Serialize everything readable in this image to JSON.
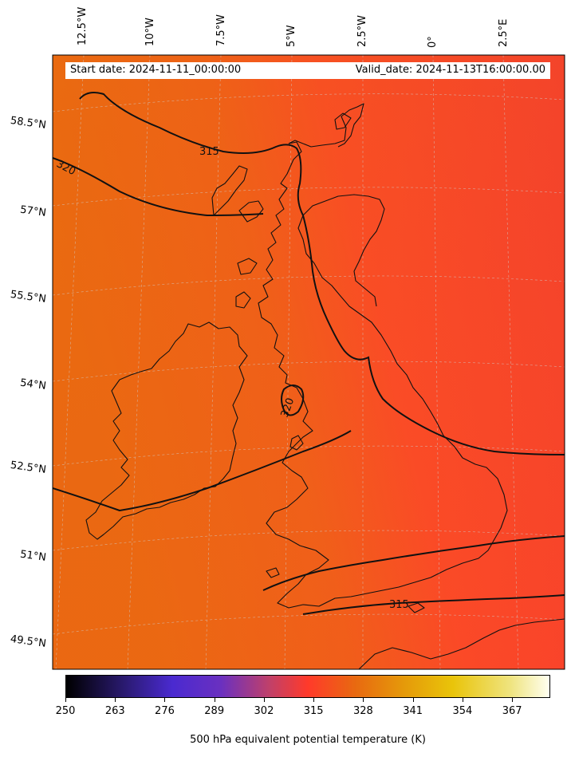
{
  "map": {
    "start_date": "Start date: 2024-11-11_00:00:00",
    "valid_date": "Valid_date: 2024-11-13T16:00:00.00",
    "lon_labels": [
      "12.5°W",
      "10°W",
      "7.5°W",
      "5°W",
      "2.5°W",
      "0°",
      "2.5°E"
    ],
    "lat_labels": [
      "58.5°N",
      "57°N",
      "55.5°N",
      "54°N",
      "52.5°N",
      "51°N",
      "49.5°N"
    ],
    "contour_labels": [
      "315",
      "320",
      "320",
      "315"
    ],
    "field_colors": {
      "west": "#ea6a14",
      "east": "#fa4a2a"
    }
  },
  "colorbar": {
    "ticks": [
      "250",
      "263",
      "276",
      "289",
      "302",
      "315",
      "328",
      "341",
      "354",
      "367"
    ],
    "label": "500 hPa equivalent potential temperature (K)"
  }
}
